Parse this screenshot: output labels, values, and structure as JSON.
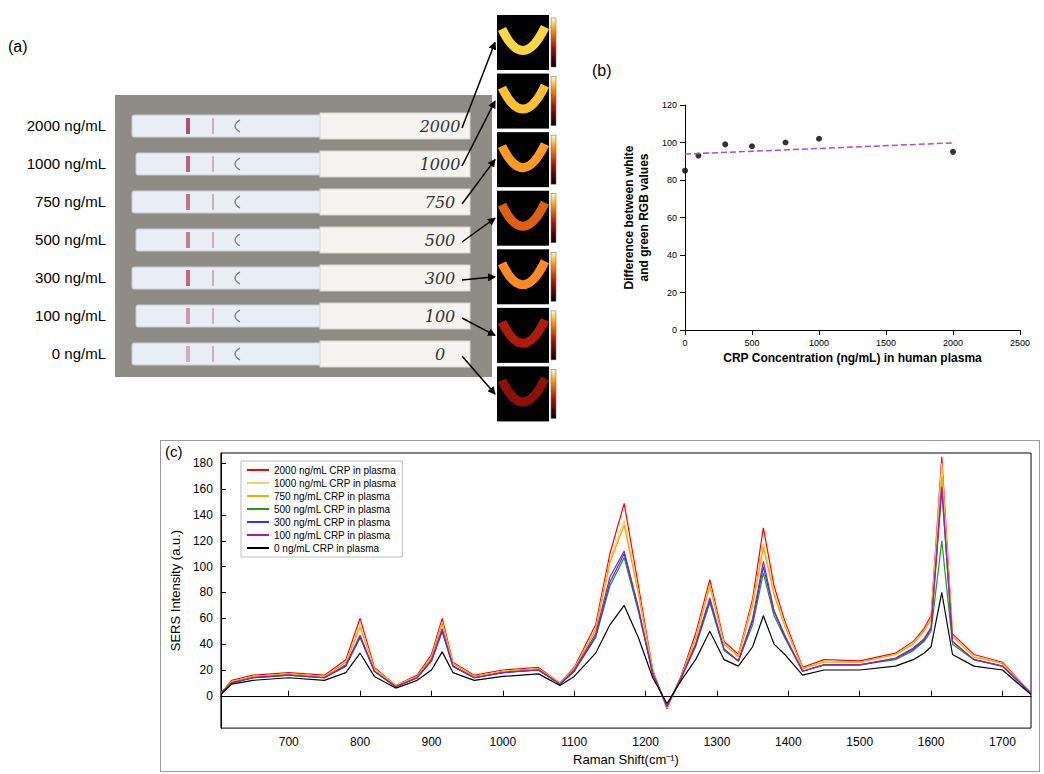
{
  "panel_a": {
    "panel_label": "(a)",
    "rows": [
      {
        "label": "2000 ng/mL",
        "strip_text": "2000"
      },
      {
        "label": "1000 ng/mL",
        "strip_text": "1000"
      },
      {
        "label": "750 ng/mL",
        "strip_text": "750"
      },
      {
        "label": "500 ng/mL",
        "strip_text": "500"
      },
      {
        "label": "300 ng/mL",
        "strip_text": "300"
      },
      {
        "label": "100 ng/mL",
        "strip_text": "100"
      },
      {
        "label": "0 ng/mL",
        "strip_text": "0"
      }
    ]
  },
  "chart_data": [
    {
      "panel_label": "(b)",
      "type": "scatter",
      "x_label": "CRP Concentration (ng/mL) in human plasma",
      "y_label": "Difference between white and green RGB values",
      "xlim": [
        0,
        2500
      ],
      "xticks": [
        0,
        500,
        1000,
        1500,
        2000,
        2500
      ],
      "ylim": [
        0,
        120
      ],
      "yticks": [
        0,
        20,
        40,
        60,
        80,
        100,
        120
      ],
      "grid": false,
      "series": [
        {
          "type": "scatter",
          "color": "#000000",
          "marker": "circle",
          "x": [
            0,
            100,
            300,
            500,
            750,
            1000,
            2000
          ],
          "values": [
            85,
            93,
            99,
            98,
            100,
            102,
            95
          ]
        },
        {
          "type": "line",
          "color": "#b048d0",
          "line_style": "dashed",
          "x": [
            0,
            2000
          ],
          "values": [
            93.8,
            99.8
          ]
        }
      ]
    },
    {
      "panel_label": "(c)",
      "type": "line",
      "x_label": "Raman Shift(cm⁻¹)",
      "y_label": "SERS Intensity (a.u.)",
      "xlim": [
        605,
        1740
      ],
      "xticks": [
        700,
        800,
        900,
        1000,
        1100,
        1200,
        1300,
        1400,
        1500,
        1600,
        1700
      ],
      "ylim": [
        -25,
        188
      ],
      "yticks": [
        0,
        20,
        40,
        60,
        80,
        100,
        120,
        140,
        160,
        180
      ],
      "grid": false,
      "legend": "upper left",
      "x": [
        605,
        620,
        650,
        700,
        750,
        780,
        800,
        820,
        850,
        880,
        900,
        915,
        930,
        960,
        1000,
        1050,
        1080,
        1100,
        1130,
        1150,
        1170,
        1190,
        1210,
        1230,
        1250,
        1270,
        1290,
        1310,
        1330,
        1350,
        1365,
        1380,
        1395,
        1420,
        1450,
        1500,
        1550,
        1575,
        1590,
        1600,
        1615,
        1630,
        1660,
        1700,
        1740
      ],
      "series": [
        {
          "name": "2000 ng/mL CRP in plasma",
          "color": "#ff0000",
          "values": [
            2,
            12,
            16,
            18,
            16,
            28,
            60,
            22,
            8,
            16,
            32,
            60,
            26,
            16,
            20,
            22,
            10,
            22,
            55,
            110,
            149,
            85,
            20,
            -10,
            16,
            48,
            90,
            42,
            32,
            75,
            130,
            85,
            58,
            22,
            28,
            27,
            33,
            42,
            52,
            62,
            185,
            48,
            32,
            26,
            2
          ]
        },
        {
          "name": "1000 ng/mL CRP in plasma",
          "color": "#f2d55c",
          "values": [
            2,
            11,
            15,
            17,
            15,
            26,
            55,
            21,
            8,
            15,
            30,
            57,
            25,
            15,
            19,
            21,
            10,
            21,
            52,
            105,
            136,
            80,
            19,
            -9,
            15,
            45,
            86,
            40,
            31,
            72,
            118,
            80,
            55,
            21,
            27,
            26,
            32,
            41,
            50,
            60,
            180,
            46,
            31,
            25,
            2
          ]
        },
        {
          "name": "750 ng/mL CRP in plasma",
          "color": "#f5a800",
          "values": [
            2,
            11,
            15,
            17,
            15,
            26,
            53,
            21,
            8,
            15,
            30,
            56,
            25,
            15,
            19,
            21,
            10,
            21,
            51,
            103,
            132,
            79,
            19,
            -9,
            15,
            44,
            85,
            40,
            30,
            70,
            115,
            78,
            54,
            21,
            26,
            26,
            32,
            40,
            50,
            59,
            170,
            46,
            30,
            25,
            2
          ]
        },
        {
          "name": "500 ng/mL CRP in plasma",
          "color": "#1a9e1a",
          "values": [
            2,
            10,
            14,
            16,
            14,
            23,
            45,
            19,
            7,
            14,
            27,
            50,
            23,
            14,
            18,
            20,
            9,
            19,
            45,
            85,
            107,
            65,
            17,
            -8,
            14,
            38,
            72,
            35,
            27,
            55,
            95,
            62,
            45,
            19,
            24,
            24,
            28,
            35,
            42,
            50,
            120,
            40,
            28,
            23,
            2
          ]
        },
        {
          "name": "300 ng/mL CRP in plasma",
          "color": "#3333ff",
          "values": [
            2,
            10,
            14,
            16,
            14,
            23,
            46,
            19,
            7,
            14,
            27,
            50,
            23,
            14,
            18,
            20,
            9,
            19,
            46,
            88,
            110,
            67,
            17,
            -8,
            14,
            39,
            74,
            36,
            27,
            58,
            100,
            65,
            46,
            19,
            24,
            24,
            29,
            36,
            43,
            52,
            160,
            42,
            28,
            23,
            2
          ]
        },
        {
          "name": "100 ng/mL CRP in plasma",
          "color": "#a020a0",
          "values": [
            2,
            10,
            14,
            16,
            14,
            24,
            47,
            19,
            7,
            14,
            28,
            52,
            23,
            14,
            18,
            20,
            9,
            20,
            48,
            92,
            112,
            68,
            17,
            -8,
            14,
            40,
            76,
            36,
            27,
            60,
            104,
            66,
            47,
            19,
            24,
            24,
            29,
            37,
            44,
            53,
            162,
            42,
            28,
            23,
            2
          ]
        },
        {
          "name": "0 ng/mL CRP in plasma",
          "color": "#000000",
          "values": [
            1,
            9,
            12,
            14,
            12,
            18,
            33,
            15,
            6,
            12,
            20,
            34,
            18,
            12,
            15,
            17,
            8,
            15,
            33,
            55,
            70,
            45,
            14,
            -6,
            12,
            28,
            50,
            28,
            23,
            38,
            62,
            40,
            32,
            16,
            20,
            20,
            23,
            28,
            33,
            38,
            80,
            32,
            23,
            20,
            1
          ]
        }
      ]
    }
  ]
}
